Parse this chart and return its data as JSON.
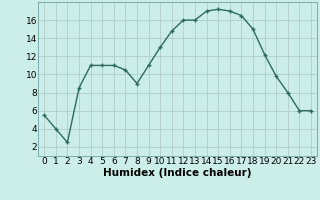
{
  "x": [
    0,
    1,
    2,
    3,
    4,
    5,
    6,
    7,
    8,
    9,
    10,
    11,
    12,
    13,
    14,
    15,
    16,
    17,
    18,
    19,
    20,
    21,
    22,
    23
  ],
  "y": [
    5.5,
    4.0,
    2.5,
    8.5,
    11.0,
    11.0,
    11.0,
    10.5,
    9.0,
    11.0,
    13.0,
    14.8,
    16.0,
    16.0,
    17.0,
    17.2,
    17.0,
    16.5,
    15.0,
    12.2,
    9.8,
    8.0,
    6.0,
    6.0
  ],
  "line_color": "#2d6b5e",
  "marker": "+",
  "bg_color": "#cceee8",
  "grid_color": "#b0cccc",
  "xlabel": "Humidex (Indice chaleur)",
  "xlabel_fontsize": 7.5,
  "tick_fontsize": 6.5,
  "xlim": [
    -0.5,
    23.5
  ],
  "ylim": [
    1.0,
    18.0
  ],
  "yticks": [
    2,
    4,
    6,
    8,
    10,
    12,
    14,
    16
  ],
  "xticks": [
    0,
    1,
    2,
    3,
    4,
    5,
    6,
    7,
    8,
    9,
    10,
    11,
    12,
    13,
    14,
    15,
    16,
    17,
    18,
    19,
    20,
    21,
    22,
    23
  ],
  "linewidth": 1.0,
  "markersize": 3.5,
  "markeredgewidth": 1.0
}
